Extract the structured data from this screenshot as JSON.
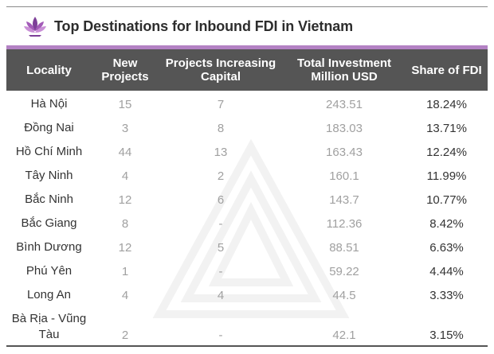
{
  "title": "Top Destinations for Inbound FDI in Vietnam",
  "logo_icon": "lotus-logo-icon",
  "colors": {
    "accent": "#b382c4",
    "header_bg": "#555555",
    "muted_text": "#a0a0a0"
  },
  "headers": {
    "locality": "Locality",
    "new_projects": "New Projects",
    "projects_increasing": "Projects Increasing Capital",
    "total_investment": "Total Investment Million USD",
    "share": "Share of FDI"
  },
  "rows": [
    {
      "locality": "Hà Nội",
      "new": "15",
      "increasing": "7",
      "total": "243.51",
      "share": "18.24%"
    },
    {
      "locality": "Đồng Nai",
      "new": "3",
      "increasing": "8",
      "total": "183.03",
      "share": "13.71%"
    },
    {
      "locality": "Hồ Chí Minh",
      "new": "44",
      "increasing": "13",
      "total": "163.43",
      "share": "12.24%"
    },
    {
      "locality": "Tây Ninh",
      "new": "4",
      "increasing": "2",
      "total": "160.1",
      "share": "11.99%"
    },
    {
      "locality": "Bắc Ninh",
      "new": "12",
      "increasing": "6",
      "total": "143.7",
      "share": "10.77%"
    },
    {
      "locality": "Bắc Giang",
      "new": "8",
      "increasing": "-",
      "total": "112.36",
      "share": "8.42%"
    },
    {
      "locality": "Bình Dương",
      "new": "12",
      "increasing": "5",
      "total": "88.51",
      "share": "6.63%"
    },
    {
      "locality": "Phú Yên",
      "new": "1",
      "increasing": "-",
      "total": "59.22",
      "share": "4.44%"
    },
    {
      "locality": "Long An",
      "new": "4",
      "increasing": "4",
      "total": "44.5",
      "share": "3.33%"
    },
    {
      "locality": "Bà Rịa - Vũng Tàu",
      "new": "2",
      "increasing": "-",
      "total": "42.1",
      "share": "3.15%"
    }
  ]
}
